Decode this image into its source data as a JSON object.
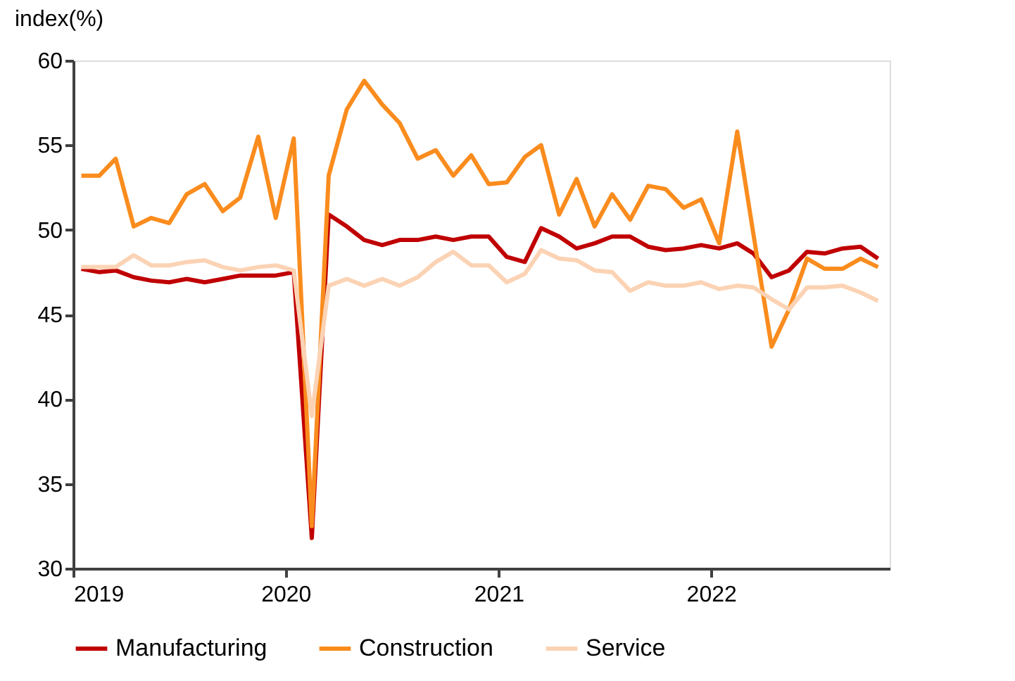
{
  "chart_data": {
    "type": "line",
    "ylabel": "index(%)",
    "x": [
      "2019-01-15",
      "2019-02-15",
      "2019-03-15",
      "2019-04-15",
      "2019-05-15",
      "2019-06-15",
      "2019-07-15",
      "2019-08-15",
      "2019-09-15",
      "2019-10-15",
      "2019-11-15",
      "2019-12-15",
      "2020-01-15",
      "2020-02-15",
      "2020-03-15",
      "2020-04-15",
      "2020-05-15",
      "2020-06-15",
      "2020-07-15",
      "2020-08-15",
      "2020-09-15",
      "2020-10-15",
      "2020-11-15",
      "2020-12-15",
      "2021-01-15",
      "2021-02-15",
      "2021-03-15",
      "2021-04-15",
      "2021-05-15",
      "2021-06-15",
      "2021-07-15",
      "2021-08-15",
      "2021-09-15",
      "2021-10-15",
      "2021-11-15",
      "2021-12-15",
      "2022-01-15",
      "2022-02-15",
      "2022-03-15",
      "2022-04-15",
      "2022-05-15",
      "2022-06-15",
      "2022-07-15",
      "2022-08-15",
      "2022-09-15",
      "2022-10-15"
    ],
    "series": [
      {
        "name": "Manufacturing",
        "color": "#c00000",
        "values": [
          47.7,
          47.5,
          47.6,
          47.2,
          47.0,
          46.9,
          47.1,
          46.9,
          47.1,
          47.3,
          47.3,
          47.3,
          47.5,
          31.8,
          50.9,
          50.2,
          49.4,
          49.1,
          49.4,
          49.4,
          49.6,
          49.4,
          49.6,
          49.6,
          48.4,
          48.1,
          50.1,
          49.6,
          48.9,
          49.2,
          49.6,
          49.6,
          49.0,
          48.8,
          48.9,
          49.1,
          48.9,
          49.2,
          48.6,
          47.2,
          47.6,
          48.7,
          48.6,
          48.9,
          49.0,
          48.3
        ]
      },
      {
        "name": "Construction",
        "color": "#fa8c1e",
        "values": [
          53.2,
          53.2,
          54.2,
          50.2,
          50.7,
          50.4,
          52.1,
          52.7,
          51.1,
          51.9,
          55.5,
          50.7,
          55.4,
          32.5,
          53.2,
          57.1,
          58.8,
          57.4,
          56.3,
          54.2,
          54.7,
          53.2,
          54.4,
          52.7,
          52.8,
          54.3,
          55.0,
          50.9,
          53.0,
          50.2,
          52.1,
          50.6,
          52.6,
          52.4,
          51.3,
          51.8,
          49.2,
          55.8,
          49.7,
          43.1,
          45.3,
          48.3,
          47.7,
          47.7,
          48.3,
          47.8
        ]
      },
      {
        "name": "Service",
        "color": "#fbd3b4",
        "values": [
          47.8,
          47.8,
          47.8,
          48.5,
          47.9,
          47.9,
          48.1,
          48.2,
          47.8,
          47.6,
          47.8,
          47.9,
          47.6,
          39.0,
          46.7,
          47.1,
          46.7,
          47.1,
          46.7,
          47.2,
          48.1,
          48.7,
          47.9,
          47.9,
          46.9,
          47.4,
          48.8,
          48.3,
          48.2,
          47.6,
          47.5,
          46.4,
          46.9,
          46.7,
          46.7,
          46.9,
          46.5,
          46.7,
          46.6,
          45.9,
          45.3,
          46.6,
          46.6,
          46.7,
          46.3,
          45.8
        ]
      }
    ],
    "xlim": [
      "2019-01-01",
      "2022-11-04"
    ],
    "xticks": [
      {
        "value": "2019-01-01",
        "label": "2019"
      },
      {
        "value": "2020-01-01",
        "label": "2020"
      },
      {
        "value": "2021-01-01",
        "label": "2021"
      },
      {
        "value": "2022-01-01",
        "label": "2022"
      }
    ],
    "ylim": [
      30,
      60
    ],
    "yticks": [
      30,
      35,
      40,
      45,
      50,
      55,
      60
    ],
    "grid": false,
    "legend": "bottom",
    "marker": "none",
    "line_style": "solid"
  }
}
